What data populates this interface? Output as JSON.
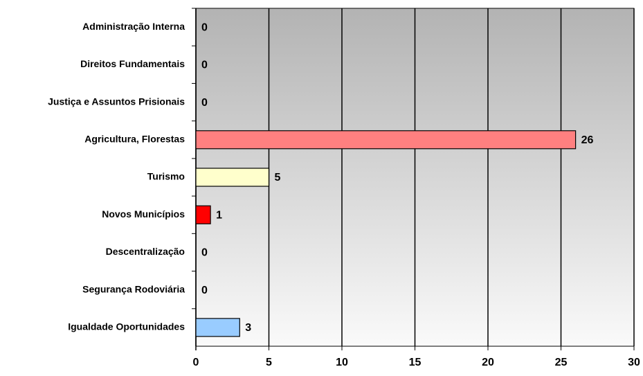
{
  "chart_data": {
    "type": "bar",
    "orientation": "horizontal",
    "categories": [
      "Administração Interna",
      "Direitos Fundamentais",
      "Justiça e Assuntos Prisionais",
      "Agricultura, Florestas",
      "Turismo",
      "Novos Municípios",
      "Descentralização",
      "Segurança Rodoviária",
      "Igualdade Oportunidades"
    ],
    "values": [
      0,
      0,
      0,
      26,
      5,
      1,
      0,
      0,
      3
    ],
    "colors": [
      null,
      null,
      null,
      "#ff8080",
      "#ffffcc",
      "#ff0000",
      null,
      null,
      "#99ccff"
    ],
    "xlim": [
      0,
      30
    ],
    "xticks": [
      0,
      5,
      10,
      15,
      20,
      25,
      30
    ],
    "grid": true
  }
}
